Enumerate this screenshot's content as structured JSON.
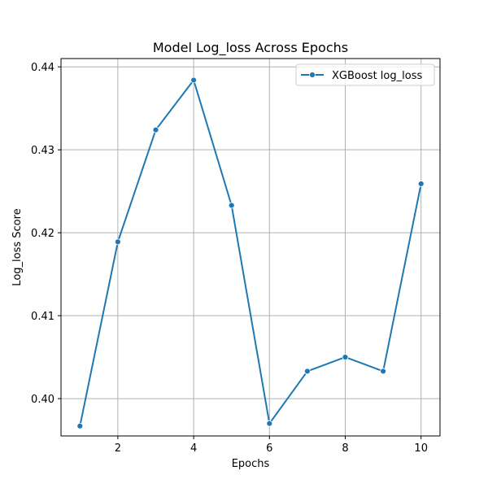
{
  "chart_data": {
    "type": "line",
    "title": "Model Log_loss Across Epochs",
    "xlabel": "Epochs",
    "ylabel": "Log_loss Score",
    "xlim": [
      0.5,
      10.5
    ],
    "ylim": [
      0.3955,
      0.441
    ],
    "xticks": [
      2,
      4,
      6,
      8,
      10
    ],
    "xtick_labels": [
      "2",
      "4",
      "6",
      "8",
      "10"
    ],
    "yticks": [
      0.4,
      0.41,
      0.42,
      0.43,
      0.44
    ],
    "ytick_labels": [
      "0.40",
      "0.41",
      "0.42",
      "0.43",
      "0.44"
    ],
    "grid": true,
    "legend_position": "top-right",
    "series": [
      {
        "name": "XGBoost log_loss",
        "color": "#1f77b4",
        "marker": "circle",
        "x": [
          1,
          2,
          3,
          4,
          5,
          6,
          7,
          8,
          9,
          10
        ],
        "y": [
          0.3967,
          0.4189,
          0.4324,
          0.4384,
          0.4233,
          0.397,
          0.4033,
          0.405,
          0.4033,
          0.4259
        ]
      }
    ]
  }
}
